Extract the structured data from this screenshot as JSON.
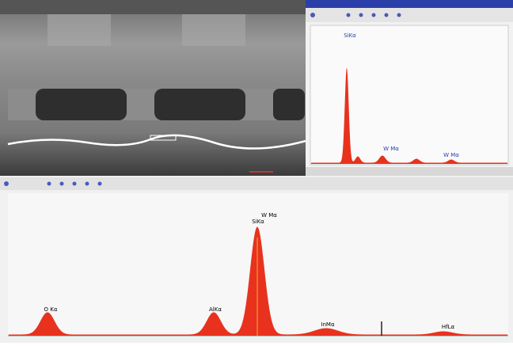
{
  "top_panel": {
    "peak_labels": [
      "SiKα",
      "W Mα",
      "W Mα"
    ]
  },
  "bottom_panel": {
    "peak_labels": [
      "O Kα",
      "AlKα",
      "W Mα",
      "SiKα",
      "InMα",
      "HfLα"
    ]
  }
}
